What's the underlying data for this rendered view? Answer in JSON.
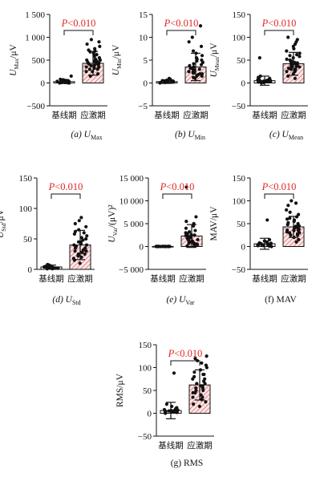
{
  "figure": {
    "accent_color": "#e32626",
    "bar_hatch_color": "#c94a4a"
  },
  "chart_data": [
    {
      "type": "bar",
      "caption": "(a) U_Max",
      "ylabel": "U_Max/μV",
      "ylim": [
        -500,
        1500
      ],
      "yticks": [
        -500,
        0,
        500,
        1000,
        1500
      ],
      "ytick_labels": [
        "−500",
        "0",
        "500",
        "1 000",
        "1 500"
      ],
      "categories": [
        "基线期",
        "应激期"
      ],
      "values": [
        30,
        430
      ],
      "error": [
        40,
        260
      ],
      "significance": "P<0.010",
      "points": [
        [
          0,
          5,
          10,
          20,
          30,
          40,
          50,
          60,
          15,
          25,
          35,
          45,
          55,
          65,
          0,
          10,
          70,
          80,
          150,
          20
        ],
        [
          200,
          250,
          300,
          320,
          350,
          380,
          400,
          420,
          440,
          460,
          480,
          500,
          520,
          550,
          600,
          650,
          700,
          750,
          800,
          900,
          250,
          300,
          350,
          150,
          450,
          500,
          380,
          420,
          480,
          620,
          580,
          680,
          720,
          850,
          950
        ]
      ]
    },
    {
      "type": "bar",
      "caption": "(b) U_Min",
      "ylabel": "U_Min/μV",
      "ylim": [
        -5,
        15
      ],
      "yticks": [
        -5,
        0,
        5,
        10,
        15
      ],
      "ytick_labels": [
        "−5",
        "0",
        "5",
        "10",
        "15"
      ],
      "categories": [
        "基线期",
        "应激期"
      ],
      "values": [
        0.3,
        3.5
      ],
      "error": [
        0.4,
        3.0
      ],
      "significance": "P<0.010",
      "points": [
        [
          0,
          0.1,
          0.2,
          0.3,
          0.4,
          0.5,
          0.6,
          0.2,
          0.3,
          0.4,
          0.1,
          0.2,
          0.3,
          0.5,
          0.8,
          1.0,
          0.2,
          0.3,
          0.4,
          0.6
        ],
        [
          1.0,
          1.5,
          2.0,
          2.5,
          3.0,
          3.5,
          4.0,
          4.5,
          5.0,
          5.5,
          6.0,
          7.0,
          8.0,
          9.0,
          10.0,
          12.5,
          1.2,
          2.2,
          2.8,
          3.2,
          3.8,
          4.2,
          2.0,
          1.8,
          6.5,
          3.0,
          2.5,
          4.8,
          5.2,
          1.5,
          2.2
        ]
      ]
    },
    {
      "type": "bar",
      "caption": "(c) U_Mean",
      "ylabel": "U_Mean/μV",
      "ylim": [
        -50,
        150
      ],
      "yticks": [
        -50,
        0,
        50,
        100,
        150
      ],
      "ytick_labels": [
        "−50",
        "0",
        "50",
        "100",
        "150"
      ],
      "categories": [
        "基线期",
        "应激期"
      ],
      "values": [
        5,
        42
      ],
      "error": [
        10,
        25
      ],
      "significance": "P<0.010",
      "points": [
        [
          0,
          1,
          2,
          3,
          4,
          5,
          6,
          8,
          10,
          2,
          3,
          4,
          5,
          6,
          12,
          15,
          3,
          4,
          55,
          7
        ],
        [
          10,
          15,
          20,
          25,
          30,
          32,
          35,
          38,
          40,
          42,
          45,
          48,
          50,
          55,
          60,
          65,
          70,
          75,
          80,
          90,
          100,
          25,
          35,
          45,
          30,
          40,
          52,
          58,
          62,
          28,
          36,
          44,
          95,
          85
        ]
      ]
    },
    {
      "type": "bar",
      "caption": "(d) U_Std",
      "ylabel": "U_Std/μV",
      "ylim": [
        0,
        150
      ],
      "yticks": [
        0,
        50,
        100,
        150
      ],
      "ytick_labels": [
        "0",
        "50",
        "100",
        "150"
      ],
      "categories": [
        "基线期",
        "应激期"
      ],
      "values": [
        4,
        40
      ],
      "error": [
        3,
        24
      ],
      "significance": "P<0.010",
      "points": [
        [
          1,
          2,
          3,
          4,
          5,
          6,
          2,
          3,
          4,
          5,
          1,
          2,
          3,
          4,
          6,
          7,
          8,
          3,
          4,
          2
        ],
        [
          10,
          15,
          20,
          25,
          28,
          30,
          32,
          35,
          38,
          40,
          42,
          45,
          48,
          50,
          55,
          60,
          65,
          70,
          75,
          80,
          85,
          25,
          35,
          45,
          30,
          40,
          52,
          58,
          62,
          22,
          18
        ]
      ]
    },
    {
      "type": "bar",
      "caption": "(e) U_Var",
      "ylabel": "U_Var/(μV)²",
      "ylim": [
        -5000,
        15000
      ],
      "yticks": [
        -5000,
        0,
        5000,
        10000,
        15000
      ],
      "ytick_labels": [
        "−5 000",
        "0",
        "5 000",
        "10 000",
        "15 000"
      ],
      "categories": [
        "基线期",
        "应激期"
      ],
      "values": [
        20,
        2300
      ],
      "error": [
        30,
        2500
      ],
      "significance": "P<0.010",
      "points": [
        [
          0,
          5,
          10,
          15,
          20,
          25,
          30,
          0,
          5,
          10,
          15,
          20,
          25,
          30,
          0,
          5,
          10,
          15,
          20,
          25
        ],
        [
          100,
          300,
          500,
          800,
          1000,
          1200,
          1500,
          1800,
          2000,
          2200,
          2500,
          2800,
          3000,
          3500,
          4000,
          4500,
          5000,
          5500,
          6500,
          13000,
          700,
          900,
          1600,
          2400,
          1100,
          1300,
          2600,
          3200,
          400,
          600
        ]
      ]
    },
    {
      "type": "bar",
      "caption": "(f) MAV",
      "ylabel": "MAV/μV",
      "ylim": [
        -50,
        150
      ],
      "yticks": [
        -50,
        0,
        50,
        100,
        150
      ],
      "ytick_labels": [
        "−50",
        "0",
        "50",
        "100",
        "150"
      ],
      "categories": [
        "基线期",
        "应激期"
      ],
      "values": [
        6,
        43
      ],
      "error": [
        12,
        23
      ],
      "significance": "P<0.010",
      "points": [
        [
          0,
          1,
          2,
          3,
          4,
          5,
          6,
          8,
          10,
          2,
          3,
          4,
          5,
          6,
          12,
          15,
          3,
          4,
          58,
          7
        ],
        [
          10,
          15,
          20,
          25,
          30,
          32,
          35,
          38,
          40,
          42,
          45,
          48,
          50,
          55,
          60,
          65,
          70,
          75,
          80,
          90,
          100,
          25,
          35,
          45,
          30,
          40,
          52,
          58,
          62,
          28,
          36,
          44,
          95
        ]
      ]
    },
    {
      "type": "bar",
      "caption": "(g) RMS",
      "ylabel": "RMS/μV",
      "ylim": [
        -50,
        150
      ],
      "yticks": [
        -50,
        0,
        50,
        100,
        150
      ],
      "ytick_labels": [
        "−50",
        "0",
        "50",
        "100",
        "150"
      ],
      "categories": [
        "基线期",
        "应激期"
      ],
      "values": [
        6,
        62
      ],
      "error": [
        18,
        33
      ],
      "significance": "P<0.010",
      "points": [
        [
          0,
          1,
          2,
          3,
          4,
          5,
          6,
          8,
          10,
          2,
          3,
          4,
          5,
          6,
          12,
          15,
          3,
          4,
          88,
          7,
          20
        ],
        [
          15,
          20,
          25,
          30,
          35,
          40,
          45,
          50,
          55,
          60,
          65,
          70,
          75,
          80,
          85,
          90,
          95,
          100,
          105,
          110,
          115,
          120,
          125,
          35,
          45,
          55,
          65,
          75,
          50,
          60,
          85
        ]
      ]
    }
  ]
}
